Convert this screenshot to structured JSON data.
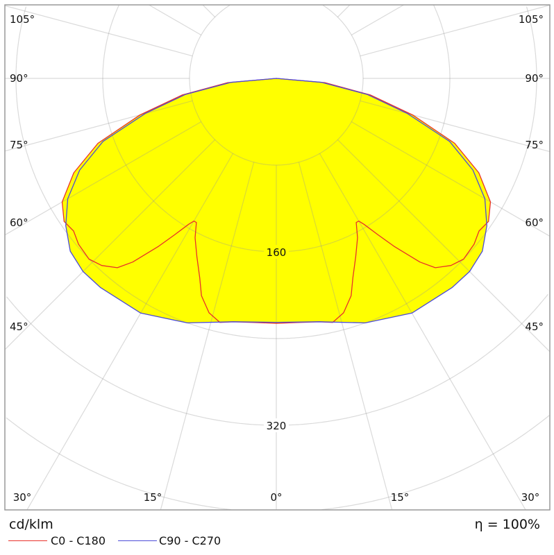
{
  "chart_data": {
    "type": "polar",
    "unit_label": "cd/klm",
    "efficiency_label": "η = 100%",
    "radial_ticks": [
      160,
      320
    ],
    "radial_grid_step": 80,
    "radial_max_visible": 400,
    "angle_grid_step_deg": 15,
    "angle_labels": {
      "left": [
        "105°",
        "90°",
        "75°",
        "60°",
        "45°"
      ],
      "right": [
        "105°",
        "90°",
        "75°",
        "60°",
        "45°"
      ],
      "bottom": [
        "30°",
        "15°",
        "0°",
        "15°",
        "30°"
      ]
    },
    "fill_color": "#ffff00",
    "grid": true,
    "symmetric": true,
    "series": [
      {
        "name": "C0 - C180",
        "color": "#e8302a",
        "angles": [
          0,
          5,
          10,
          13,
          16,
          19,
          21,
          24,
          27,
          29,
          30,
          31,
          33,
          35,
          38,
          40,
          43,
          46,
          50,
          53,
          56,
          60,
          65,
          70,
          75,
          80,
          85,
          90
        ],
        "values": [
          226,
          226,
          228,
          231,
          225,
          212,
          197,
          180,
          165,
          152,
          152,
          157,
          172,
          189,
          215,
          228,
          236,
          240,
          238,
          234,
          236,
          228,
          206,
          175,
          130,
          88,
          45,
          0
        ]
      },
      {
        "name": "C90 - C270",
        "color": "#4b4bd8",
        "angles": [
          0,
          10,
          20,
          30,
          40,
          45,
          50,
          55,
          60,
          65,
          70,
          75,
          80,
          85,
          90
        ],
        "values": [
          225,
          228,
          240,
          250,
          252,
          252,
          248,
          237,
          222,
          200,
          170,
          125,
          85,
          42,
          0
        ]
      }
    ],
    "legend_placement": "bottom-left"
  }
}
